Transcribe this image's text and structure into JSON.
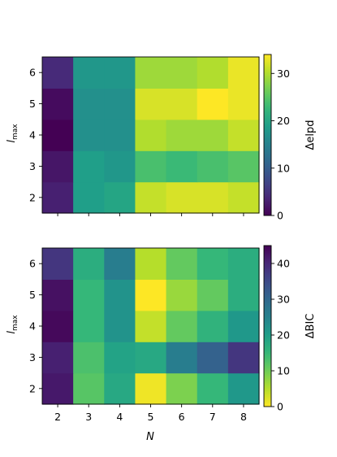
{
  "chart_data": [
    {
      "type": "heatmap",
      "x": [
        2,
        3,
        4,
        5,
        6,
        7,
        8
      ],
      "y": [
        2,
        3,
        4,
        5,
        6
      ],
      "xlabel": "N",
      "ylabel": "l_max",
      "xtick_labels_shown": false,
      "colormap": "viridis",
      "colorbar": {
        "label": "Δelpd",
        "range": [
          0,
          34
        ],
        "ticks": [
          0,
          10,
          20,
          30
        ]
      },
      "values": [
        [
          3,
          19,
          20,
          31,
          32,
          32,
          31
        ],
        [
          2,
          19,
          18,
          24,
          23,
          24,
          25
        ],
        [
          0,
          17,
          17,
          30,
          29,
          29,
          31
        ],
        [
          1,
          17,
          17,
          32,
          32,
          34,
          33
        ],
        [
          4,
          18,
          18,
          29,
          29,
          30,
          33
        ]
      ]
    },
    {
      "type": "heatmap",
      "x": [
        2,
        3,
        4,
        5,
        6,
        7,
        8
      ],
      "y": [
        2,
        3,
        4,
        5,
        6
      ],
      "xlabel": "N",
      "ylabel": "l_max",
      "colormap": "viridis_r",
      "colorbar": {
        "label": "ΔBIC",
        "range": [
          0,
          45
        ],
        "ticks": [
          0,
          10,
          20,
          30,
          40
        ]
      },
      "values": [
        [
          42,
          12,
          18,
          1,
          9,
          15,
          21
        ],
        [
          41,
          13,
          19,
          18,
          26,
          31,
          38
        ],
        [
          44,
          15,
          22,
          4,
          11,
          16,
          21
        ],
        [
          43,
          15,
          22,
          0,
          7,
          11,
          17
        ],
        [
          38,
          17,
          26,
          5,
          11,
          15,
          17
        ]
      ]
    }
  ],
  "axis_text": {
    "xlabel": "N",
    "ylabel_main": "l",
    "ylabel_sub": "max",
    "cbar1_label": "Δelpd",
    "cbar2_label": "ΔBIC"
  }
}
